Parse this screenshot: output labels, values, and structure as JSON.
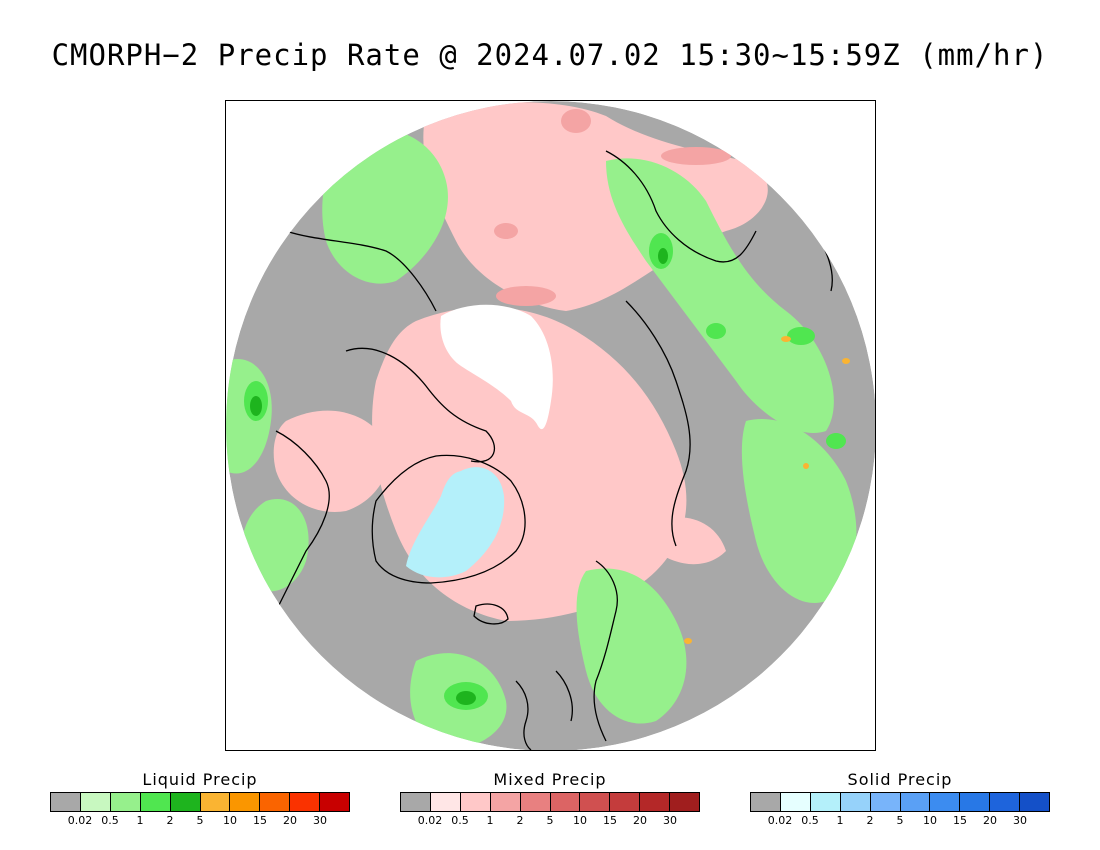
{
  "title": "CMORPH−2 Precip Rate @ 2024.07.02 15:30~15:59Z (mm/hr)",
  "map": {
    "projection": "north-polar-stereographic",
    "colors": {
      "background_gray": "#a8a8a8",
      "no_data_white": "#ffffff",
      "coastline": "#000000"
    }
  },
  "legends": [
    {
      "name": "liquid",
      "title": "Liquid Precip",
      "colors": [
        "#a8a8a8",
        "#c8f8c0",
        "#96f08c",
        "#50e650",
        "#1eb41e",
        "#fab432",
        "#fa9600",
        "#fa6400",
        "#fa3200",
        "#c80000"
      ],
      "ticks": [
        "0.02",
        "0.5",
        "1",
        "2",
        "5",
        "10",
        "15",
        "20",
        "30"
      ]
    },
    {
      "name": "mixed",
      "title": "Mixed Precip",
      "colors": [
        "#a8a8a8",
        "#ffe6e6",
        "#ffc8c8",
        "#f4a4a4",
        "#e88080",
        "#dc6464",
        "#d05050",
        "#c43c3c",
        "#b42828",
        "#a01e1e"
      ],
      "ticks": [
        "0.02",
        "0.5",
        "1",
        "2",
        "5",
        "10",
        "15",
        "20",
        "30"
      ]
    },
    {
      "name": "solid",
      "title": "Solid Precip",
      "colors": [
        "#a8a8a8",
        "#e6ffff",
        "#b4f0fa",
        "#96d2fa",
        "#78b4fa",
        "#5aa0f5",
        "#3c8cf0",
        "#2878e6",
        "#1e64dc",
        "#1450c8"
      ],
      "ticks": [
        "0.02",
        "0.5",
        "1",
        "2",
        "5",
        "10",
        "15",
        "20",
        "30"
      ]
    }
  ]
}
